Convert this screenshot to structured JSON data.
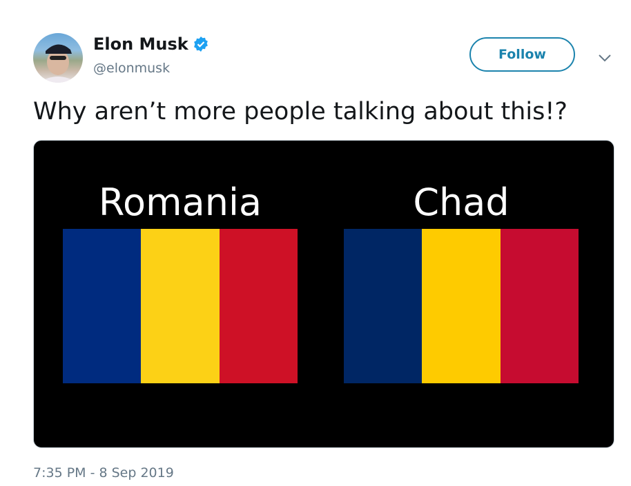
{
  "user": {
    "name": "Elon Musk",
    "handle": "@elonmusk",
    "verified": true,
    "avatar_icon": "profile-photo"
  },
  "header": {
    "follow_label": "Follow",
    "menu_icon": "chevron-down-icon"
  },
  "tweet": {
    "text": "Why aren’t more people talking about this!?",
    "timestamp": "7:35 PM - 8 Sep 2019"
  },
  "media": {
    "flags": [
      {
        "label": "Romania",
        "colors": [
          "#002b7f",
          "#fcd116",
          "#ce1126"
        ]
      },
      {
        "label": "Chad",
        "colors": [
          "#002664",
          "#fecb00",
          "#c60c30"
        ]
      }
    ]
  },
  "colors": {
    "accent": "#1b83ad",
    "verified": "#1da1f2",
    "muted": "#657786"
  }
}
